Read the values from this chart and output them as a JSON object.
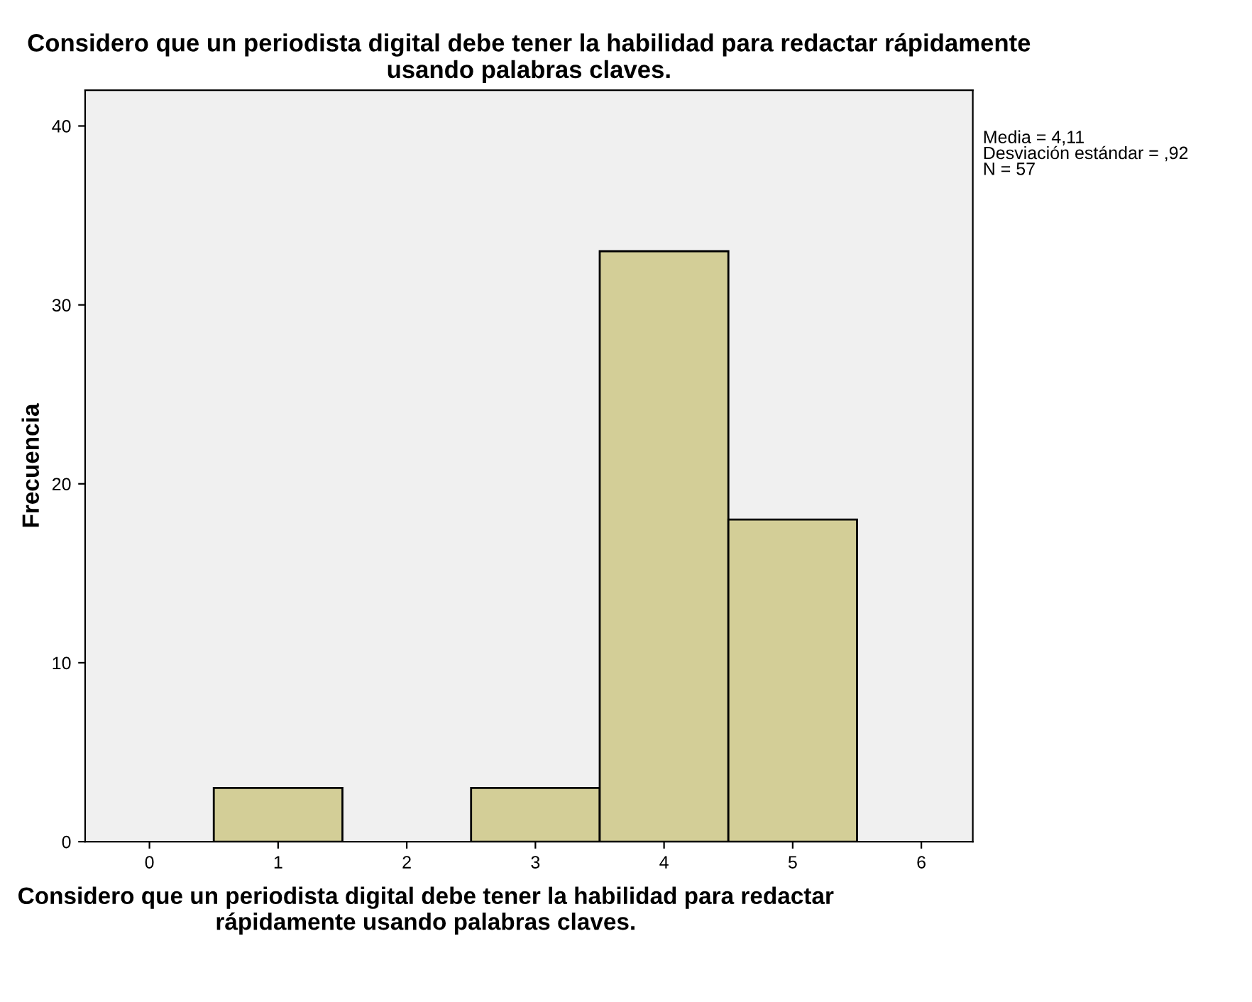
{
  "chart_data": {
    "type": "histogram",
    "title": "Considero que un periodista digital debe tener la habilidad para redactar rápidamente usando palabras claves.",
    "xlabel": "Considero que un periodista digital debe tener la habilidad para redactar rápidamente usando palabras claves.",
    "ylabel": "Frecuencia",
    "bins": [
      0.5,
      1.5,
      2.5,
      3.5,
      4.5,
      5.5
    ],
    "values": [
      3,
      0,
      3,
      33,
      18
    ],
    "color": "#d3ce97",
    "xlim": [
      -0.5,
      6.4
    ],
    "xticks": [
      0,
      1,
      2,
      3,
      4,
      5,
      6
    ],
    "ylim": [
      0,
      42
    ],
    "yticks": [
      0,
      10,
      20,
      30,
      40
    ],
    "grid": false,
    "annotations": [
      "Media = 4,11\nDesviación estándar = ,92\nN = 57"
    ]
  }
}
